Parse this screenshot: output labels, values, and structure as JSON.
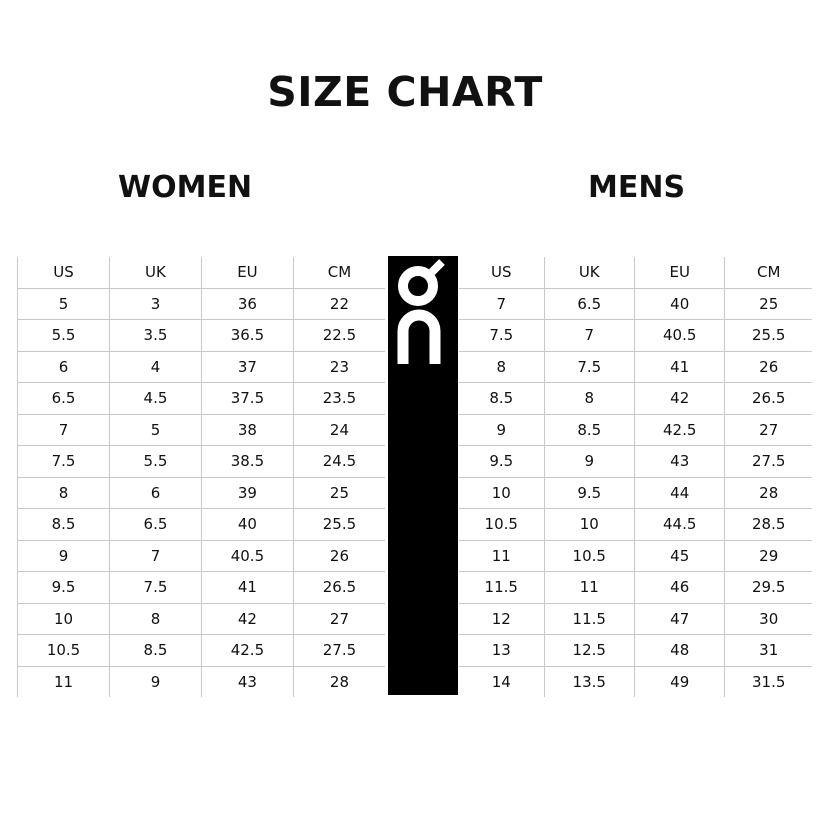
{
  "title": "SIZE CHART",
  "women": {
    "heading": "WOMEN",
    "columns": [
      "US",
      "UK",
      "EU",
      "CM"
    ],
    "rows": [
      [
        "5",
        "3",
        "36",
        "22"
      ],
      [
        "5.5",
        "3.5",
        "36.5",
        "22.5"
      ],
      [
        "6",
        "4",
        "37",
        "23"
      ],
      [
        "6.5",
        "4.5",
        "37.5",
        "23.5"
      ],
      [
        "7",
        "5",
        "38",
        "24"
      ],
      [
        "7.5",
        "5.5",
        "38.5",
        "24.5"
      ],
      [
        "8",
        "6",
        "39",
        "25"
      ],
      [
        "8.5",
        "6.5",
        "40",
        "25.5"
      ],
      [
        "9",
        "7",
        "40.5",
        "26"
      ],
      [
        "9.5",
        "7.5",
        "41",
        "26.5"
      ],
      [
        "10",
        "8",
        "42",
        "27"
      ],
      [
        "10.5",
        "8.5",
        "42.5",
        "27.5"
      ],
      [
        "11",
        "9",
        "43",
        "28"
      ]
    ]
  },
  "mens": {
    "heading": "MENS",
    "columns": [
      "US",
      "UK",
      "EU",
      "CM"
    ],
    "rows": [
      [
        "7",
        "6.5",
        "40",
        "25"
      ],
      [
        "7.5",
        "7",
        "40.5",
        "25.5"
      ],
      [
        "8",
        "7.5",
        "41",
        "26"
      ],
      [
        "8.5",
        "8",
        "42",
        "26.5"
      ],
      [
        "9",
        "8.5",
        "42.5",
        "27"
      ],
      [
        "9.5",
        "9",
        "43",
        "27.5"
      ],
      [
        "10",
        "9.5",
        "44",
        "28"
      ],
      [
        "10.5",
        "10",
        "44.5",
        "28.5"
      ],
      [
        "11",
        "10.5",
        "45",
        "29"
      ],
      [
        "11.5",
        "11",
        "46",
        "29.5"
      ],
      [
        "12",
        "11.5",
        "47",
        "30"
      ],
      [
        "13",
        "12.5",
        "48",
        "31"
      ],
      [
        "14",
        "13.5",
        "49",
        "31.5"
      ]
    ]
  },
  "logo": {
    "name": "on-logo-icon",
    "text": "On",
    "colors": {
      "bg": "#000000",
      "fg": "#ffffff"
    }
  }
}
